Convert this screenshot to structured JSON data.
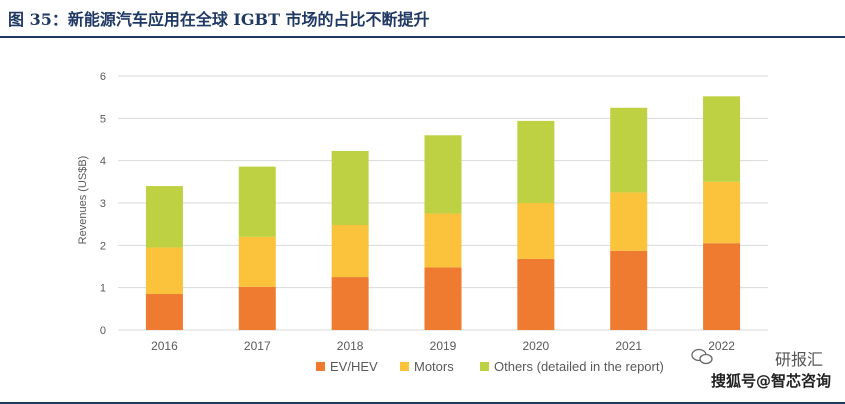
{
  "figure_title": "图 35：新能源汽车应用在全球 IGBT 市场的占比不断提升",
  "watermark": {
    "line1": "研报汇",
    "line2": "搜狐号@智芯咨询",
    "icon": "chat-bubble-icon"
  },
  "colors": {
    "ev": "#ee7b30",
    "motors": "#fbc23c",
    "others": "#bed142",
    "grid": "#d9d9d9",
    "axis_text": "#595959",
    "title": "#1f3864"
  },
  "chart_data": {
    "type": "bar",
    "stacked": true,
    "categories": [
      "2016",
      "2017",
      "2018",
      "2019",
      "2020",
      "2021",
      "2022"
    ],
    "series": [
      {
        "name": "EV/HEV",
        "color": "#ee7b30",
        "values": [
          0.85,
          1.02,
          1.25,
          1.48,
          1.68,
          1.87,
          2.05
        ]
      },
      {
        "name": "Motors",
        "color": "#fbc23c",
        "values": [
          1.1,
          1.18,
          1.23,
          1.27,
          1.32,
          1.38,
          1.45
        ]
      },
      {
        "name": "Others (detailed in the report)",
        "color": "#bed142",
        "values": [
          1.45,
          1.66,
          1.75,
          1.85,
          1.94,
          2.0,
          2.02
        ]
      }
    ],
    "ylabel": "Revenues (US$B)",
    "ylim": [
      0,
      6
    ],
    "yticks": [
      "0",
      "1",
      "2",
      "3",
      "4",
      "5",
      "6"
    ],
    "grid": true,
    "legend": "bottom"
  }
}
